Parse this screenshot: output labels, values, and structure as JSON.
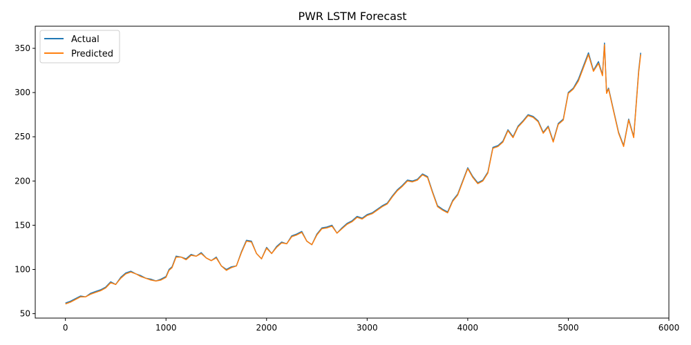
{
  "chart_data": {
    "type": "line",
    "title": "PWR LSTM Forecast",
    "xlabel": "",
    "ylabel": "",
    "xlim": [
      -300,
      6000
    ],
    "ylim": [
      45,
      375
    ],
    "x_ticks": [
      0,
      1000,
      2000,
      3000,
      4000,
      5000,
      6000
    ],
    "y_ticks": [
      50,
      100,
      150,
      200,
      250,
      300,
      350
    ],
    "grid": false,
    "legend_position": "top-left",
    "series": [
      {
        "name": "Actual",
        "color": "#1f77b4",
        "x": [
          0,
          50,
          100,
          150,
          200,
          250,
          300,
          350,
          400,
          450,
          500,
          550,
          600,
          650,
          700,
          750,
          800,
          850,
          900,
          950,
          1000,
          1030,
          1060,
          1100,
          1150,
          1200,
          1250,
          1300,
          1350,
          1400,
          1450,
          1500,
          1550,
          1600,
          1650,
          1700,
          1750,
          1800,
          1850,
          1900,
          1950,
          2000,
          2050,
          2100,
          2150,
          2200,
          2250,
          2300,
          2350,
          2400,
          2450,
          2500,
          2550,
          2600,
          2650,
          2700,
          2750,
          2800,
          2850,
          2900,
          2950,
          3000,
          3050,
          3100,
          3150,
          3200,
          3250,
          3300,
          3350,
          3400,
          3450,
          3500,
          3550,
          3600,
          3650,
          3700,
          3750,
          3800,
          3850,
          3900,
          3950,
          4000,
          4050,
          4100,
          4150,
          4200,
          4250,
          4300,
          4350,
          4400,
          4450,
          4500,
          4550,
          4600,
          4650,
          4700,
          4750,
          4800,
          4850,
          4900,
          4950,
          5000,
          5050,
          5100,
          5150,
          5200,
          5250,
          5300,
          5340,
          5360,
          5380,
          5400,
          5450,
          5500,
          5550,
          5600,
          5650,
          5700,
          5720
        ],
        "values": [
          62,
          64,
          67,
          70,
          69,
          73,
          75,
          77,
          80,
          86,
          83,
          91,
          96,
          98,
          95,
          93,
          90,
          89,
          87,
          89,
          92,
          100,
          103,
          115,
          114,
          112,
          117,
          115,
          119,
          113,
          110,
          114,
          104,
          100,
          103,
          104,
          120,
          133,
          132,
          118,
          112,
          125,
          118,
          126,
          131,
          129,
          138,
          140,
          143,
          132,
          128,
          140,
          147,
          148,
          150,
          141,
          147,
          152,
          155,
          160,
          158,
          162,
          164,
          168,
          172,
          175,
          183,
          190,
          195,
          201,
          200,
          202,
          208,
          205,
          188,
          172,
          168,
          165,
          178,
          185,
          200,
          215,
          205,
          198,
          201,
          210,
          238,
          240,
          245,
          258,
          250,
          262,
          268,
          275,
          273,
          268,
          255,
          262,
          245,
          265,
          270,
          300,
          305,
          315,
          330,
          345,
          325,
          335,
          320,
          356,
          300,
          305,
          280,
          255,
          240,
          270,
          250,
          325,
          345
        ]
      },
      {
        "name": "Predicted",
        "color": "#ff7f0e",
        "x": [
          0,
          50,
          100,
          150,
          200,
          250,
          300,
          350,
          400,
          450,
          500,
          550,
          600,
          650,
          700,
          750,
          800,
          850,
          900,
          950,
          1000,
          1030,
          1060,
          1100,
          1150,
          1200,
          1250,
          1300,
          1350,
          1400,
          1450,
          1500,
          1550,
          1600,
          1650,
          1700,
          1750,
          1800,
          1850,
          1900,
          1950,
          2000,
          2050,
          2100,
          2150,
          2200,
          2250,
          2300,
          2350,
          2400,
          2450,
          2500,
          2550,
          2600,
          2650,
          2700,
          2750,
          2800,
          2850,
          2900,
          2950,
          3000,
          3050,
          3100,
          3150,
          3200,
          3250,
          3300,
          3350,
          3400,
          3450,
          3500,
          3550,
          3600,
          3650,
          3700,
          3750,
          3800,
          3850,
          3900,
          3950,
          4000,
          4050,
          4100,
          4150,
          4200,
          4250,
          4300,
          4350,
          4400,
          4450,
          4500,
          4550,
          4600,
          4650,
          4700,
          4750,
          4800,
          4850,
          4900,
          4950,
          5000,
          5050,
          5100,
          5150,
          5200,
          5250,
          5300,
          5340,
          5360,
          5380,
          5400,
          5450,
          5500,
          5550,
          5600,
          5650,
          5700,
          5720
        ],
        "values": [
          61,
          63,
          66,
          69,
          69,
          72,
          74,
          76,
          79,
          85,
          83,
          90,
          95,
          97,
          95,
          92,
          90,
          88,
          87,
          88,
          91,
          99,
          102,
          114,
          114,
          111,
          116,
          115,
          118,
          113,
          110,
          113,
          104,
          99,
          102,
          104,
          119,
          132,
          131,
          118,
          112,
          124,
          118,
          125,
          130,
          129,
          137,
          139,
          142,
          132,
          128,
          139,
          146,
          147,
          149,
          141,
          146,
          151,
          154,
          159,
          157,
          161,
          163,
          167,
          171,
          174,
          182,
          189,
          194,
          200,
          199,
          201,
          207,
          204,
          187,
          171,
          167,
          164,
          177,
          184,
          199,
          214,
          204,
          197,
          200,
          209,
          237,
          239,
          244,
          257,
          249,
          261,
          267,
          274,
          272,
          267,
          254,
          261,
          244,
          264,
          269,
          299,
          304,
          313,
          328,
          343,
          324,
          333,
          319,
          354,
          299,
          304,
          279,
          254,
          239,
          269,
          249,
          323,
          343
        ]
      }
    ]
  }
}
